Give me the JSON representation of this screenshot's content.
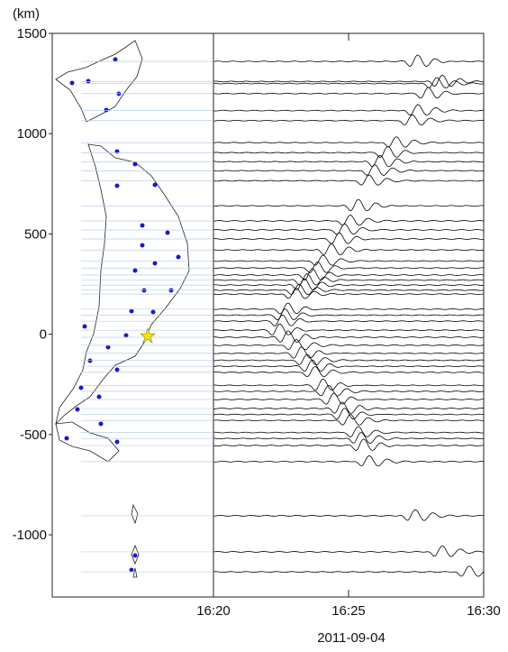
{
  "chart_data": {
    "type": "record-section",
    "ylabel": "(km)",
    "xlabel": "2011-09-04",
    "ylim": [
      -1310,
      1500
    ],
    "yticks": [
      -1000,
      -500,
      0,
      500,
      1000,
      1500
    ],
    "xlim": [
      0,
      10
    ],
    "xticks": [
      {
        "value": 0,
        "label": "16:20"
      },
      {
        "value": 5,
        "label": "16:25"
      },
      {
        "value": 10,
        "label": "16:30"
      }
    ],
    "color": "#000000",
    "traces": {
      "offsets": [
        1360,
        1260,
        1250,
        1200,
        1115,
        1065,
        955,
        905,
        860,
        815,
        765,
        640,
        565,
        520,
        475,
        420,
        365,
        330,
        295,
        270,
        245,
        220,
        200,
        125,
        95,
        65,
        20,
        -15,
        -55,
        -95,
        -130,
        -160,
        -190,
        -255,
        -285,
        -325,
        -370,
        -400,
        -430,
        -490,
        -520,
        -555,
        -635,
        -905,
        -1085,
        -1185
      ],
      "arrivals": [
        7.4,
        8.3,
        8.1,
        7.8,
        7.4,
        7.2,
        6.6,
        6.3,
        6.0,
        5.8,
        5.6,
        5.2,
        4.9,
        4.7,
        4.5,
        4.2,
        3.9,
        3.7,
        3.5,
        3.3,
        3.2,
        3.0,
        2.9,
        2.6,
        2.5,
        2.4,
        2.3,
        2.6,
        2.9,
        3.1,
        3.3,
        3.5,
        3.6,
        3.9,
        4.1,
        4.3,
        4.6,
        4.7,
        4.9,
        5.2,
        5.3,
        5.4,
        5.6,
        7.3,
        8.3,
        9.3
      ]
    }
  }
}
